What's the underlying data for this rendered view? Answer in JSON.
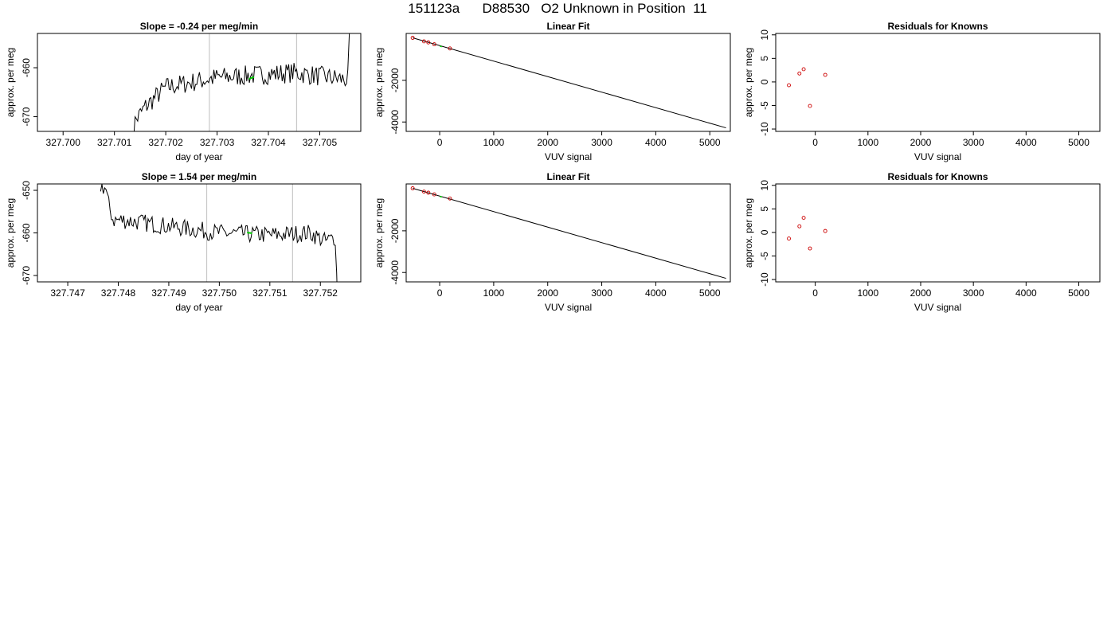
{
  "figure": {
    "title": "151123a      D88530   O2 Unknown in Position  11"
  },
  "colors": {
    "trace": "#000000",
    "highlight": "#00cc00",
    "known_points": "#cc0000",
    "marker_lines": "#c8c8c8",
    "fit_line": "#000000"
  },
  "chart_data": [
    {
      "id": "trace-top",
      "type": "line",
      "title": "Slope =  -0.24  per meg/min",
      "xlabel": "day of year",
      "ylabel": "approx. per meg",
      "xlim": [
        327.6995,
        327.7058
      ],
      "ylim": [
        -673,
        -653
      ],
      "xticks": [
        327.7,
        327.701,
        327.702,
        327.703,
        327.704,
        327.705
      ],
      "xtick_labels": [
        "327.700",
        "327.701",
        "327.702",
        "327.703",
        "327.704",
        "327.705"
      ],
      "yticks": [
        -670,
        -660
      ],
      "ytick_labels": [
        "-670",
        "-660"
      ],
      "vlines": [
        327.70285,
        327.70455
      ],
      "highlight": {
        "x": [
          327.70362,
          327.70372
        ],
        "y": [
          -662.3,
          -661.9
        ]
      },
      "trace_shape": {
        "x_start": 327.7013,
        "x_end": 327.70565,
        "n": 170,
        "baseline": [
          [
            327.7013,
            -680
          ],
          [
            327.7014,
            -671
          ],
          [
            327.7016,
            -668
          ],
          [
            327.702,
            -664
          ],
          [
            327.703,
            -662
          ],
          [
            327.7045,
            -661
          ],
          [
            327.70555,
            -662.5
          ],
          [
            327.70563,
            -640
          ]
        ],
        "noise": 1.3
      }
    },
    {
      "id": "fit-top",
      "type": "line",
      "title": "Linear Fit",
      "xlabel": "VUV signal",
      "ylabel": "approx. per meg",
      "xlim": [
        -620,
        5380
      ],
      "ylim": [
        -4450,
        250
      ],
      "xticks": [
        0,
        1000,
        2000,
        3000,
        4000,
        5000
      ],
      "xtick_labels": [
        "0",
        "1000",
        "2000",
        "3000",
        "4000",
        "5000"
      ],
      "yticks": [
        -4000,
        -2000
      ],
      "ytick_labels": [
        "-4000",
        "-2000"
      ],
      "fit_line": {
        "x": [
          -500,
          5300
        ],
        "y": [
          40,
          -4280
        ]
      },
      "known_points": {
        "x": [
          -500,
          -290,
          -210,
          -100,
          190
        ],
        "y": [
          40,
          -130,
          -180,
          -270,
          -470
        ]
      },
      "unknown_point": {
        "x": [
          5,
          40
        ],
        "y": [
          -360,
          -385
        ]
      }
    },
    {
      "id": "resid-top",
      "type": "scatter",
      "title": "Residuals for Knowns",
      "xlabel": "VUV signal",
      "ylabel": "approx. per meg",
      "xlim": [
        -750,
        5400
      ],
      "ylim": [
        -10.5,
        10.3
      ],
      "xticks": [
        0,
        1000,
        2000,
        3000,
        4000,
        5000
      ],
      "xtick_labels": [
        "0",
        "1000",
        "2000",
        "3000",
        "4000",
        "5000"
      ],
      "yticks": [
        -10,
        -5,
        0,
        5,
        10
      ],
      "ytick_labels": [
        "-10",
        "-5",
        "0",
        "5",
        "10"
      ],
      "points": {
        "x": [
          -500,
          -300,
          -220,
          -100,
          190
        ],
        "y": [
          -0.7,
          1.8,
          2.7,
          -5.1,
          1.5
        ]
      }
    },
    {
      "id": "trace-bottom",
      "type": "line",
      "title": "Slope =  1.54  per meg/min",
      "xlabel": "day of year",
      "ylabel": "approx. per meg",
      "xlim": [
        327.7464,
        327.7528
      ],
      "ylim": [
        -671.5,
        -648.5
      ],
      "xticks": [
        327.747,
        327.748,
        327.749,
        327.75,
        327.751,
        327.752
      ],
      "xtick_labels": [
        "327.747",
        "327.748",
        "327.749",
        "327.750",
        "327.751",
        "327.752"
      ],
      "yticks": [
        -670,
        -660,
        -650
      ],
      "ytick_labels": [
        "-670",
        "-660",
        "-650"
      ],
      "vlines": [
        327.74975,
        327.75145
      ],
      "highlight": {
        "x": [
          327.75055,
          327.75065
        ],
        "y": [
          -659.9,
          -660.1
        ]
      },
      "trace_shape": {
        "x_start": 327.74765,
        "x_end": 327.75235,
        "n": 175,
        "baseline": [
          [
            327.74765,
            -649
          ],
          [
            327.74775,
            -649.5
          ],
          [
            327.7478,
            -653
          ],
          [
            327.7479,
            -657
          ],
          [
            327.7481,
            -657
          ],
          [
            327.75,
            -660
          ],
          [
            327.751,
            -660.5
          ],
          [
            327.7518,
            -660
          ],
          [
            327.7521,
            -662
          ],
          [
            327.7523,
            -661
          ],
          [
            327.75235,
            -680
          ]
        ],
        "noise": 1.3
      }
    },
    {
      "id": "fit-bottom",
      "type": "line",
      "title": "Linear Fit",
      "xlabel": "VUV signal",
      "ylabel": "approx. per meg",
      "xlim": [
        -620,
        5380
      ],
      "ylim": [
        -4450,
        250
      ],
      "xticks": [
        0,
        1000,
        2000,
        3000,
        4000,
        5000
      ],
      "xtick_labels": [
        "0",
        "1000",
        "2000",
        "3000",
        "4000",
        "5000"
      ],
      "yticks": [
        -4000,
        -2000
      ],
      "ytick_labels": [
        "-4000",
        "-2000"
      ],
      "fit_line": {
        "x": [
          -500,
          5300
        ],
        "y": [
          40,
          -4280
        ]
      },
      "known_points": {
        "x": [
          -500,
          -290,
          -210,
          -100,
          190
        ],
        "y": [
          40,
          -120,
          -170,
          -250,
          -450
        ]
      },
      "unknown_point": {
        "x": [
          5,
          40
        ],
        "y": [
          -350,
          -375
        ]
      }
    },
    {
      "id": "resid-bottom",
      "type": "scatter",
      "title": "Residuals for Knowns",
      "xlabel": "VUV signal",
      "ylabel": "approx. per meg",
      "xlim": [
        -750,
        5400
      ],
      "ylim": [
        -10.5,
        10.3
      ],
      "xticks": [
        0,
        1000,
        2000,
        3000,
        4000,
        5000
      ],
      "xtick_labels": [
        "0",
        "1000",
        "2000",
        "3000",
        "4000",
        "5000"
      ],
      "yticks": [
        -10,
        -5,
        0,
        5,
        10
      ],
      "ytick_labels": [
        "-10",
        "-5",
        "0",
        "5",
        "10"
      ],
      "points": {
        "x": [
          -500,
          -300,
          -220,
          -100,
          190
        ],
        "y": [
          -1.3,
          1.3,
          3.1,
          -3.4,
          0.3
        ]
      }
    }
  ]
}
